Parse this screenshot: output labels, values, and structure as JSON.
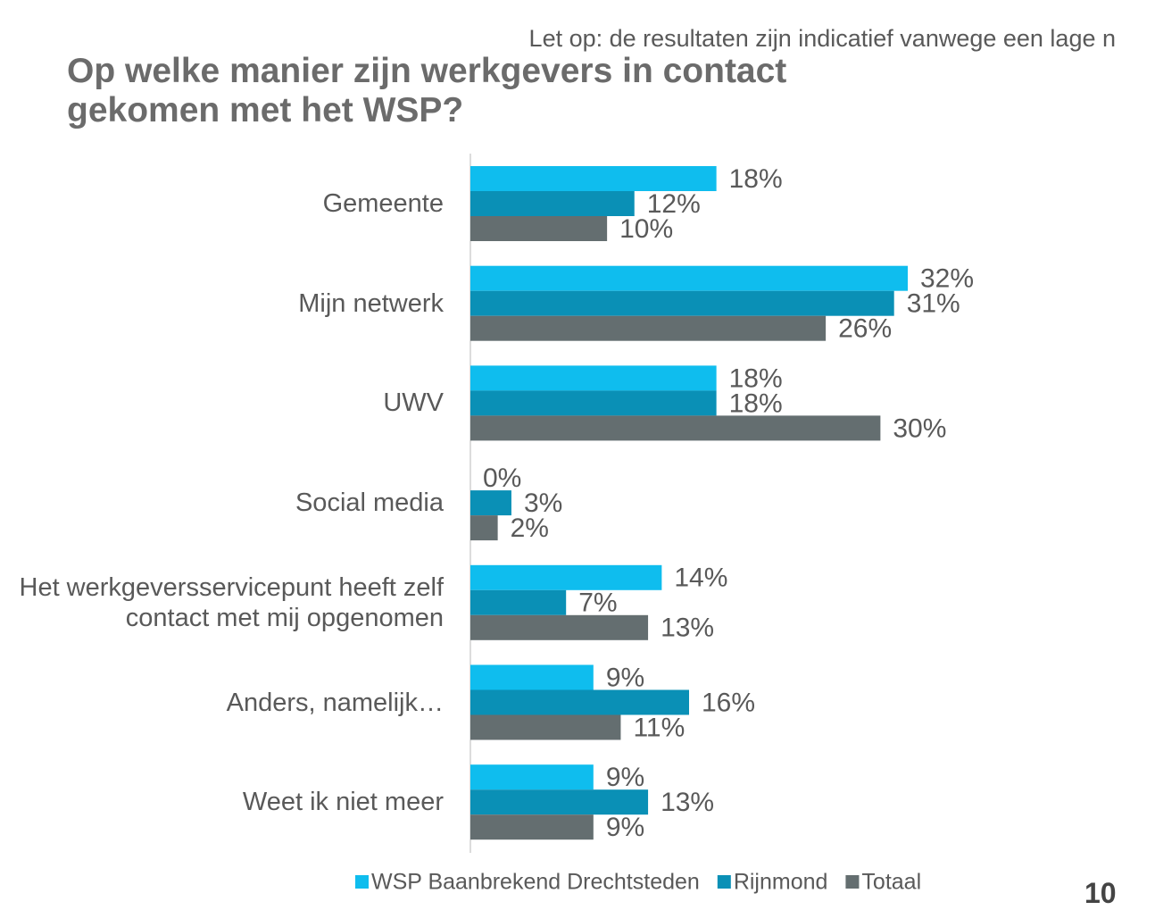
{
  "note": "Let op: de resultaten zijn indicatief vanwege een lage n",
  "page_number": "10",
  "chart_data": {
    "type": "bar",
    "orientation": "horizontal",
    "title": "Op welke manier zijn werkgevers in contact gekomen met het WSP?",
    "categories": [
      "Gemeente",
      "Mijn netwerk",
      "UWV",
      "Social media",
      "Het werkgeversservicepunt heeft zelf contact met mij opgenomen",
      "Anders, namelijk…",
      "Weet ik niet meer"
    ],
    "series": [
      {
        "name": "WSP Baanbrekend Drechtsteden",
        "color": "#0fbdee",
        "values": [
          18,
          32,
          18,
          0,
          14,
          9,
          9
        ],
        "value_labels": [
          "18%",
          "32%",
          "18%",
          "0%",
          "14%",
          "9%",
          "9%"
        ]
      },
      {
        "name": "Rijnmond",
        "color": "#0a90b6",
        "values": [
          12,
          31,
          18,
          3,
          7,
          16,
          13
        ],
        "value_labels": [
          "12%",
          "31%",
          "18%",
          "3%",
          "7%",
          "16%",
          "13%"
        ]
      },
      {
        "name": "Totaal",
        "color": "#646e70",
        "values": [
          10,
          26,
          30,
          2,
          13,
          11,
          9
        ],
        "value_labels": [
          "10%",
          "26%",
          "30%",
          "2%",
          "13%",
          "11%",
          "9%"
        ]
      }
    ],
    "legend": "bottom"
  }
}
